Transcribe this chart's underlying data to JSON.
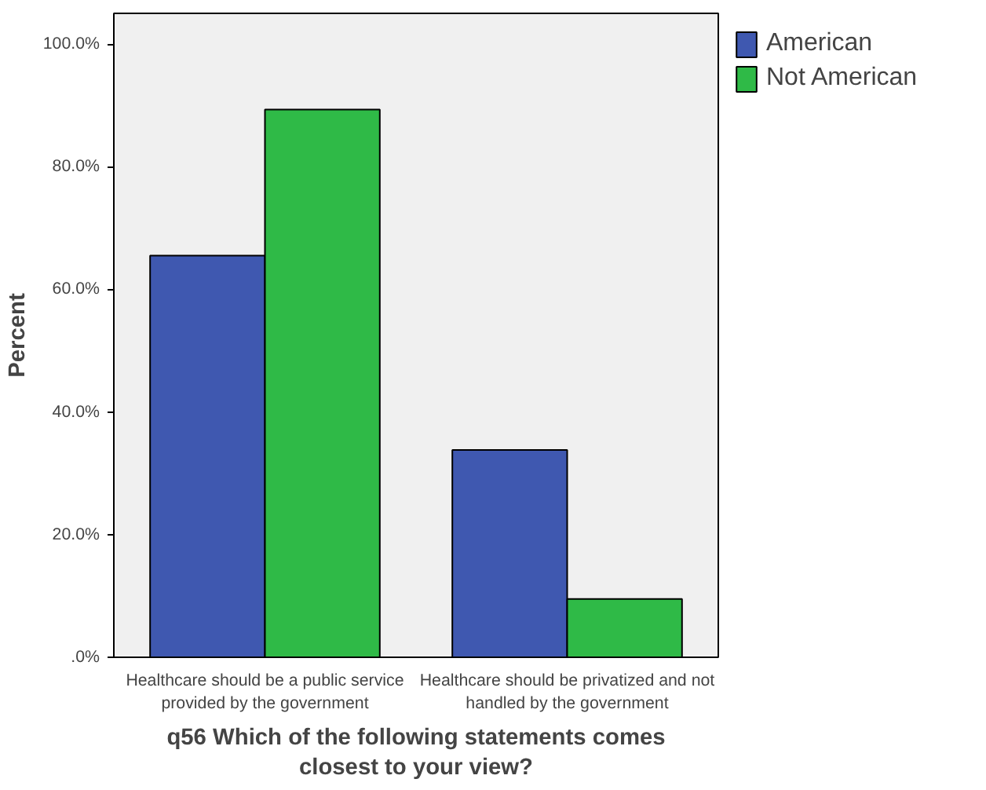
{
  "chart_data": {
    "type": "bar",
    "xlabel": "q56 Which of the following statements comes closest to your view?",
    "ylabel": "Percent",
    "categories": [
      "Healthcare should be a public service provided by the government",
      "Healthcare should be privatized and not handled by the government"
    ],
    "series": [
      {
        "name": "American",
        "color": "#3f58b0",
        "values": [
          65.5,
          33.8
        ]
      },
      {
        "name": "Not American",
        "color": "#2fba47",
        "values": [
          89.3,
          9.5
        ]
      }
    ],
    "ylim": [
      0,
      105
    ],
    "yticks": [
      {
        "value": 0,
        "label": ".0%"
      },
      {
        "value": 20,
        "label": "20.0%"
      },
      {
        "value": 40,
        "label": "40.0%"
      },
      {
        "value": 60,
        "label": "60.0%"
      },
      {
        "value": 80,
        "label": "80.0%"
      },
      {
        "value": 100,
        "label": "100.0%"
      }
    ],
    "legend": "top right"
  }
}
